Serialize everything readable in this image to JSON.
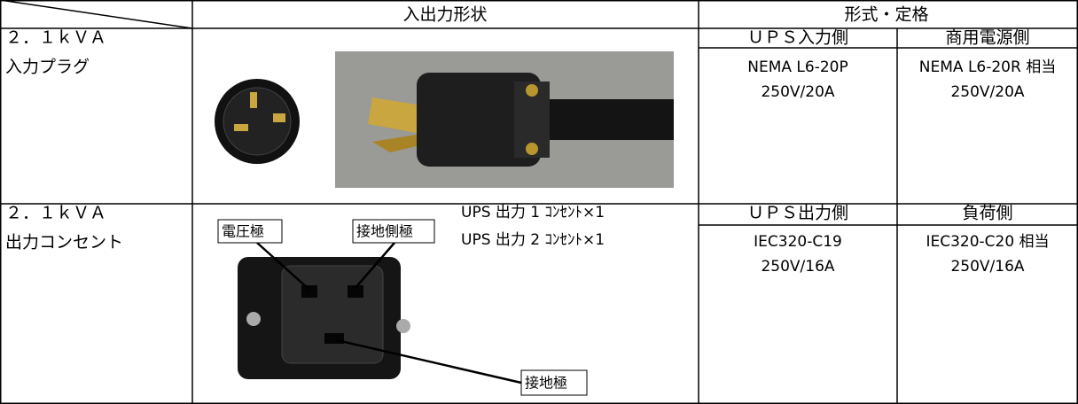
{
  "header": {
    "columns": [
      "入出力形状",
      "形式・定格"
    ]
  },
  "rows": [
    {
      "label": [
        "２．１ｋＶＡ",
        "入力プラグ"
      ],
      "spec_headers": [
        "ＵＰＳ入力側",
        "商用電源側"
      ],
      "ups_spec": [
        "NEMA L6-20P",
        "250V/20A"
      ],
      "other_spec": [
        "NEMA L6-20R 相当",
        "250V/20A"
      ]
    },
    {
      "label": [
        "２．１ｋＶＡ",
        "出力コンセント"
      ],
      "callouts": [
        "電圧極",
        "接地側極",
        "接地極"
      ],
      "notes": [
        "UPS 出力 1 ｺﾝｾﾝﾄ×1",
        "UPS 出力 2 ｺﾝｾﾝﾄ×1"
      ],
      "spec_headers": [
        "ＵＰＳ出力側",
        "負荷側"
      ],
      "ups_spec": [
        "IEC320-C19",
        "250V/16A"
      ],
      "other_spec": [
        "IEC320-C20 相当",
        "250V/16A"
      ]
    }
  ]
}
